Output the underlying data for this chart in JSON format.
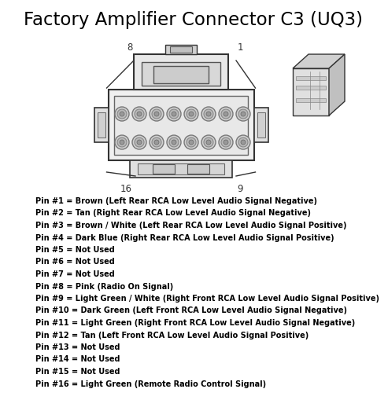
{
  "title": "Factory Amplifier Connector C3 (UQ3)",
  "title_fontsize": 16.5,
  "bg_color": "#ffffff",
  "text_color": "#000000",
  "pin_labels": [
    "Pin #1 = Brown (Left Rear RCA Low Level Audio Signal Negative)",
    "Pin #2 = Tan (Right Rear RCA Low Level Audio Signal Negative)",
    "Pin #3 = Brown / White (Left Rear RCA Low Level Audio Signal Positive)",
    "Pin #4 = Dark Blue (Right Rear RCA Low Level Audio Signal Positive)",
    "Pin #5 = Not Used",
    "Pin #6 = Not Used",
    "Pin #7 = Not Used",
    "Pin #8 = Pink (Radio On Signal)",
    "Pin #9 = Light Green / White (Right Front RCA Low Level Audio Signal Positive)",
    "Pin #10 = Dark Green (Left Front RCA Low Level Audio Signal Negative)",
    "Pin #11 = Light Green (Right Front RCA Low Level Audio Signal Negative)",
    "Pin #12 = Tan (Left Front RCA Low Level Audio Signal Positive)",
    "Pin #13 = Not Used",
    "Pin #14 = Not Used",
    "Pin #15 = Not Used",
    "Pin #16 = Light Green (Remote Radio Control Signal)"
  ],
  "pin_fontsize": 7.0,
  "edge_color": "#555555",
  "face_color": "#dddddd",
  "dark_color": "#333333",
  "mid_color": "#aaaaaa"
}
